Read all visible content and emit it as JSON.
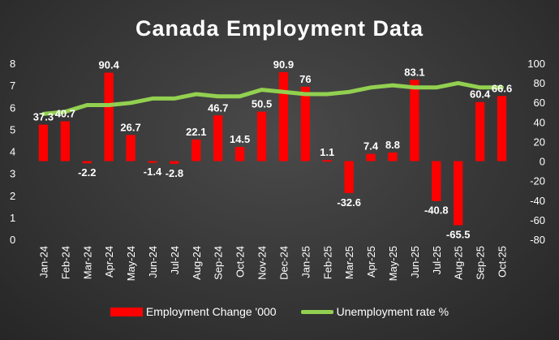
{
  "chart_data": {
    "type": "bar+line",
    "title": "Canada Employment Data",
    "categories": [
      "Jan-24",
      "Feb-24",
      "Mar-24",
      "Apr-24",
      "May-24",
      "Jun-24",
      "Jul-24",
      "Aug-24",
      "Sep-24",
      "Oct-24",
      "Nov-24",
      "Dec-24",
      "Jan-25",
      "Feb-25",
      "Mar-25",
      "Apr-25",
      "May-25",
      "Jun-25",
      "Jul-25",
      "Aug-25",
      "Sep-25",
      "Oct-25"
    ],
    "left_axis": {
      "ylim": [
        0,
        8
      ],
      "ticks": [
        "0",
        "1",
        "2",
        "3",
        "4",
        "5",
        "6",
        "7",
        "8"
      ]
    },
    "right_axis": {
      "ylim": [
        -80,
        100
      ],
      "ticks": [
        "-80",
        "-60",
        "-40",
        "-20",
        "0",
        "20",
        "40",
        "60",
        "80",
        "100"
      ]
    },
    "series": [
      {
        "name": "Employment Change '000",
        "type": "bar",
        "axis": "right",
        "color": "#ff0000",
        "values": [
          37.3,
          40.7,
          -2.2,
          90.4,
          26.7,
          -1.4,
          -2.8,
          22.1,
          46.7,
          14.5,
          50.5,
          90.9,
          76,
          1.1,
          -32.6,
          7.4,
          8.8,
          83.1,
          -40.8,
          -65.5,
          60.4,
          66.6
        ],
        "labels": [
          "37.3",
          "40.7",
          "-2.2",
          "90.4",
          "26.7",
          "-1.4",
          "-2.8",
          "22.1",
          "46.7",
          "14.5",
          "50.5",
          "90.9",
          "76",
          "1.1",
          "-32.6",
          "7.4",
          "8.8",
          "83.1",
          "-40.8",
          "-65.5",
          "60.4",
          "66.6"
        ]
      },
      {
        "name": "Unemployment rate %",
        "type": "line",
        "axis": "left",
        "color": "#92d050",
        "values": [
          5.7,
          5.8,
          6.1,
          6.1,
          6.2,
          6.4,
          6.4,
          6.6,
          6.5,
          6.5,
          6.8,
          6.7,
          6.6,
          6.6,
          6.7,
          6.9,
          7.0,
          6.9,
          6.9,
          7.1,
          6.9,
          6.9
        ]
      }
    ],
    "legend_position": "bottom"
  }
}
